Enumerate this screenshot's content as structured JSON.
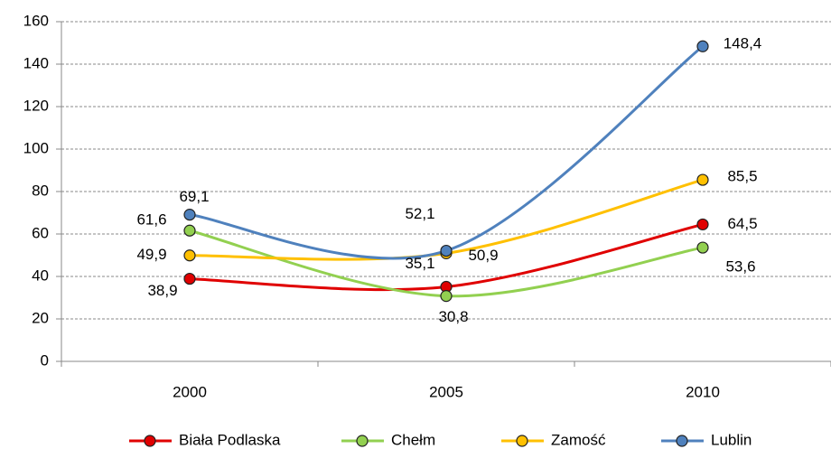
{
  "chart_data": {
    "type": "line",
    "categories": [
      "2000",
      "2005",
      "2010"
    ],
    "series": [
      {
        "name": "Biała Podlaska",
        "color": "#e00000",
        "values": [
          38.9,
          35.1,
          64.5
        ],
        "value_labels": [
          "38,9",
          "35,1",
          "64,5"
        ]
      },
      {
        "name": "Chełm",
        "color": "#92d050",
        "values": [
          61.6,
          30.8,
          53.6
        ],
        "value_labels": [
          "61,6",
          "30,8",
          "53,6"
        ]
      },
      {
        "name": "Zamość",
        "color": "#ffc000",
        "values": [
          49.9,
          50.9,
          85.5
        ],
        "value_labels": [
          "49,9",
          "50,9",
          "85,5"
        ]
      },
      {
        "name": "Lublin",
        "color": "#4f81bd",
        "values": [
          69.1,
          52.1,
          148.4
        ],
        "value_labels": [
          "69,1",
          "52,1",
          "148,4"
        ]
      }
    ],
    "ylim": [
      0,
      160
    ],
    "yticks": [
      0,
      20,
      40,
      60,
      80,
      100,
      120,
      140,
      160
    ],
    "grid": true,
    "smooth": true,
    "legend": "bottom"
  }
}
